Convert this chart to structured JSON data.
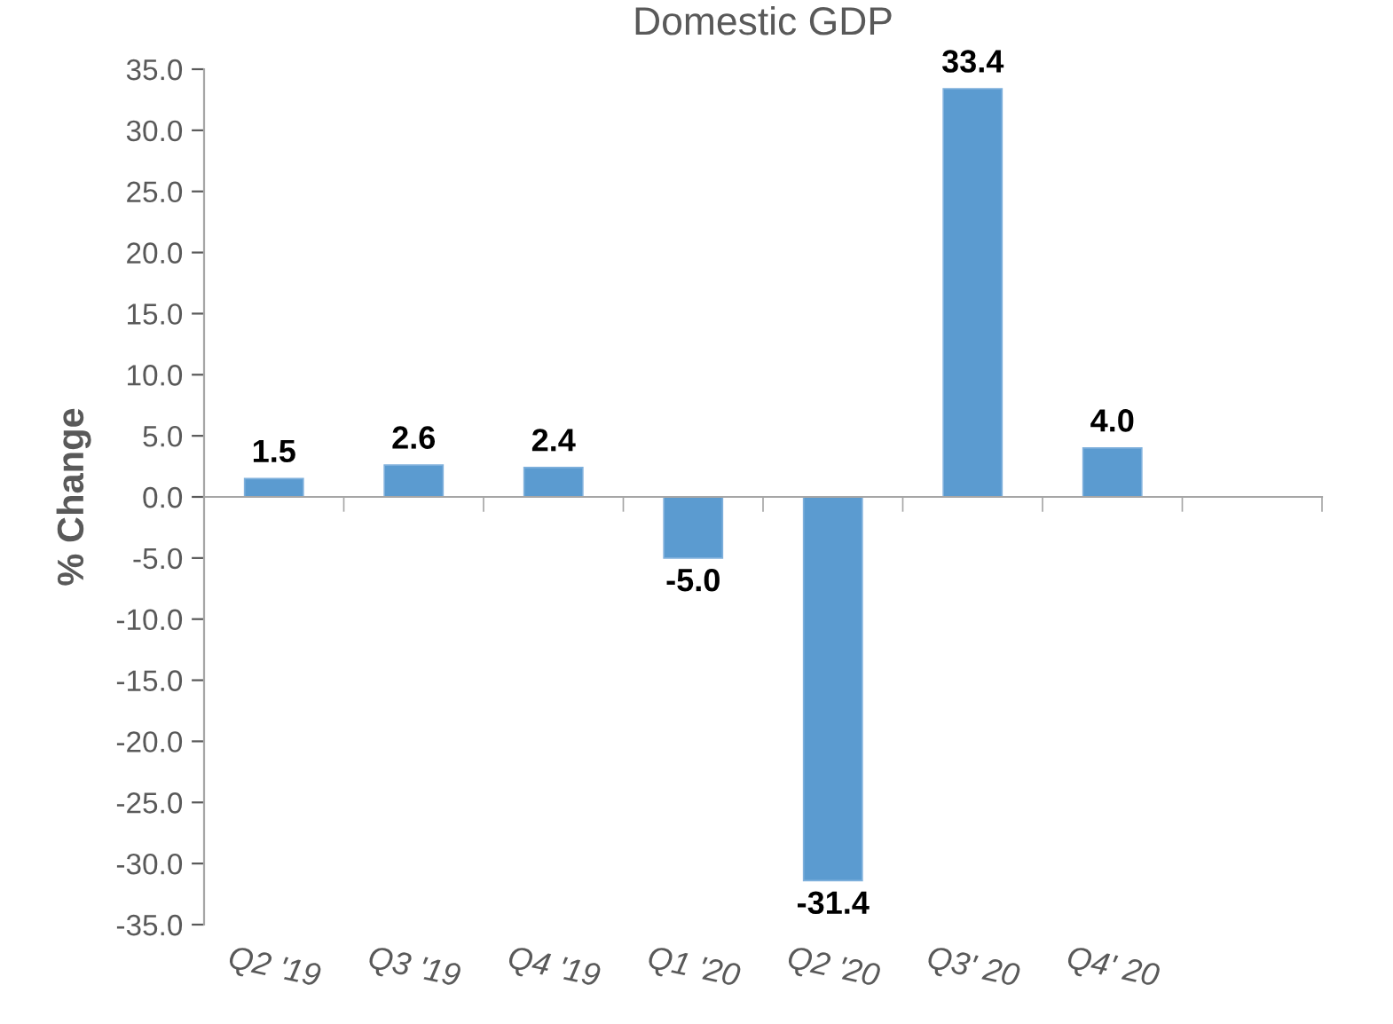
{
  "chart_data": {
    "type": "bar",
    "title": "Domestic GDP",
    "ylabel": "% Change",
    "categories": [
      "Q2 '19",
      "Q3 '19",
      "Q4 '19",
      "Q1 '20",
      "Q2 '20",
      "Q3' 20",
      "Q4' 20",
      null
    ],
    "values": [
      1.5,
      2.6,
      2.4,
      -5.0,
      -31.4,
      33.4,
      4.0,
      null
    ],
    "value_labels": [
      "1.5",
      "2.6",
      "2.4",
      "-5.0",
      "-31.4",
      "33.4",
      "4.0",
      null
    ],
    "color": "#5b9bd0",
    "ylim": [
      -35,
      35
    ],
    "yticks": [
      {
        "value": -35,
        "label": "-35.0"
      },
      {
        "value": -30,
        "label": "-30.0"
      },
      {
        "value": -25,
        "label": "-25.0"
      },
      {
        "value": -20,
        "label": "-20.0"
      },
      {
        "value": -15,
        "label": "-15.0"
      },
      {
        "value": -10,
        "label": "-10.0"
      },
      {
        "value": -5,
        "label": "-5.0"
      },
      {
        "value": 0,
        "label": "0.0"
      },
      {
        "value": 5,
        "label": "5.0"
      },
      {
        "value": 10,
        "label": "10.0"
      },
      {
        "value": 15,
        "label": "15.0"
      },
      {
        "value": 20,
        "label": "20.0"
      },
      {
        "value": 25,
        "label": "25.0"
      },
      {
        "value": 30,
        "label": "30.0"
      },
      {
        "value": 35,
        "label": "35.0"
      }
    ],
    "legend": false
  }
}
